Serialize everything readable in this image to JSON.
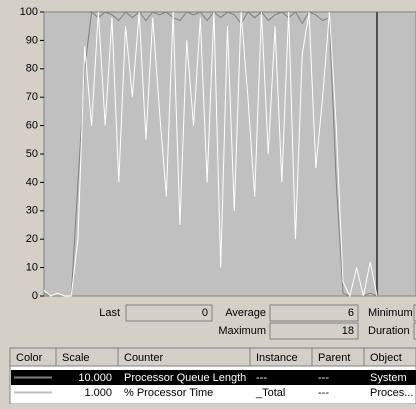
{
  "chart_data": {
    "type": "line",
    "ylim": [
      0,
      100
    ],
    "yticks": [
      0,
      10,
      20,
      30,
      40,
      50,
      60,
      70,
      80,
      90,
      100
    ],
    "series": [
      {
        "name": "Processor Queue Length",
        "color": "#808080",
        "values": [
          1,
          0,
          0,
          0,
          0,
          40,
          80,
          100,
          98,
          100,
          99,
          97,
          100,
          98,
          100,
          97,
          100,
          99,
          100,
          98,
          97,
          100,
          99,
          100,
          97,
          100,
          98,
          100,
          99,
          96,
          100,
          98,
          100,
          97,
          99,
          100,
          98,
          100,
          96,
          100,
          99,
          97,
          98,
          40,
          1,
          0,
          0,
          0,
          1,
          0
        ]
      },
      {
        "name": "% Processor Time",
        "color": "#ffffff",
        "values": [
          2,
          0,
          1,
          0,
          0,
          20,
          88,
          60,
          100,
          60,
          98,
          40,
          95,
          70,
          100,
          55,
          98,
          65,
          35,
          100,
          25,
          90,
          60,
          98,
          40,
          100,
          10,
          95,
          30,
          100,
          70,
          35,
          100,
          50,
          95,
          40,
          100,
          20,
          85,
          100,
          45,
          70,
          100,
          60,
          5,
          0,
          10,
          0,
          12,
          0
        ]
      }
    ]
  },
  "stats": {
    "last_label": "Last",
    "last": "0",
    "average_label": "Average",
    "average": "6",
    "minimum_label": "Minimum",
    "maximum_label": "Maximum",
    "maximum": "18",
    "duration_label": "Duration"
  },
  "table": {
    "headers": [
      "Color",
      "Scale",
      "Counter",
      "Instance",
      "Parent",
      "Object"
    ],
    "rows": [
      [
        "10.000",
        "Processor Queue Length",
        "---",
        "---",
        "System"
      ],
      [
        "1.000",
        "% Processor Time",
        "_Total",
        "---",
        "Proces..."
      ]
    ]
  }
}
